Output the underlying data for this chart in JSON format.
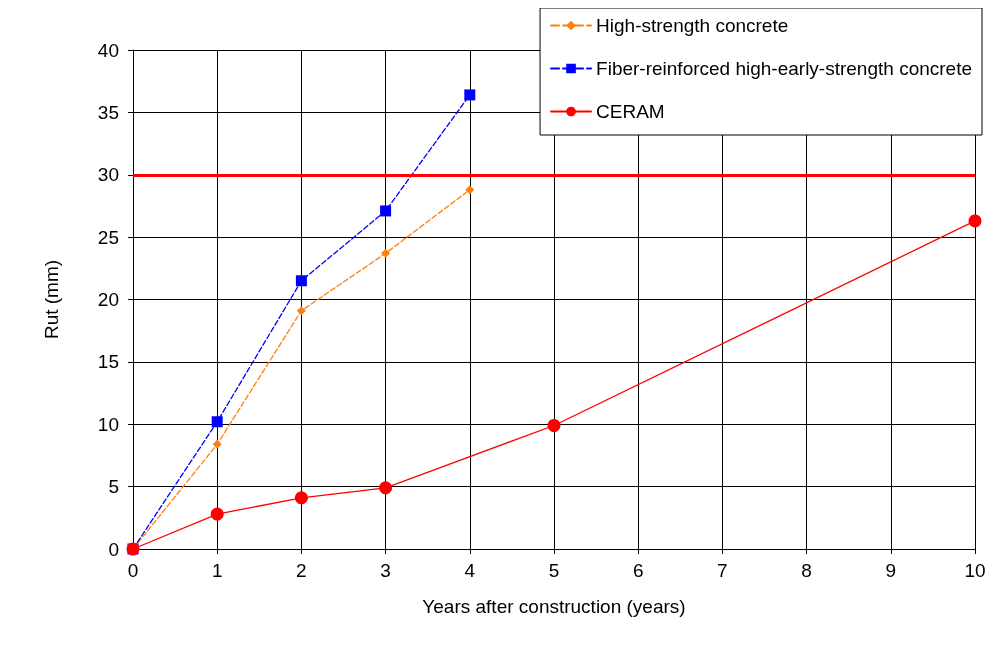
{
  "chart_data": {
    "type": "line",
    "xlabel": "Years after construction (years)",
    "ylabel": "Rut (mm)",
    "xlim": [
      0,
      10
    ],
    "xticks": [
      0,
      1,
      2,
      3,
      4,
      5,
      6,
      7,
      8,
      9,
      10
    ],
    "ylim": [
      0,
      40
    ],
    "yticks": [
      0,
      5,
      10,
      15,
      20,
      25,
      30,
      35,
      40
    ],
    "grid": true,
    "legend": "top right",
    "series": [
      {
        "name": "High-strength concrete",
        "color": "#ff7f0e",
        "x": [
          0,
          1,
          2,
          3,
          4
        ],
        "values": [
          0,
          8.4,
          19.1,
          23.7,
          28.8
        ],
        "marker": "diamond",
        "line_style": "dashed"
      },
      {
        "name": "Fiber-reinforced high-early-strength concrete",
        "color": "#0000ff",
        "x": [
          0,
          1,
          2,
          3,
          4
        ],
        "values": [
          0,
          10.2,
          21.5,
          27.1,
          36.4
        ],
        "marker": "square",
        "line_style": "dashed"
      },
      {
        "name": "CERAM",
        "color": "#ff0000",
        "x": [
          0,
          1,
          2,
          3,
          5,
          10
        ],
        "values": [
          0,
          2.8,
          4.1,
          4.9,
          9.9,
          26.3
        ],
        "marker": "circle",
        "line_style": "solid"
      }
    ],
    "ref_lines": [
      {
        "axis": "y",
        "value": 30,
        "label": null,
        "color": "#ff0000"
      }
    ]
  }
}
